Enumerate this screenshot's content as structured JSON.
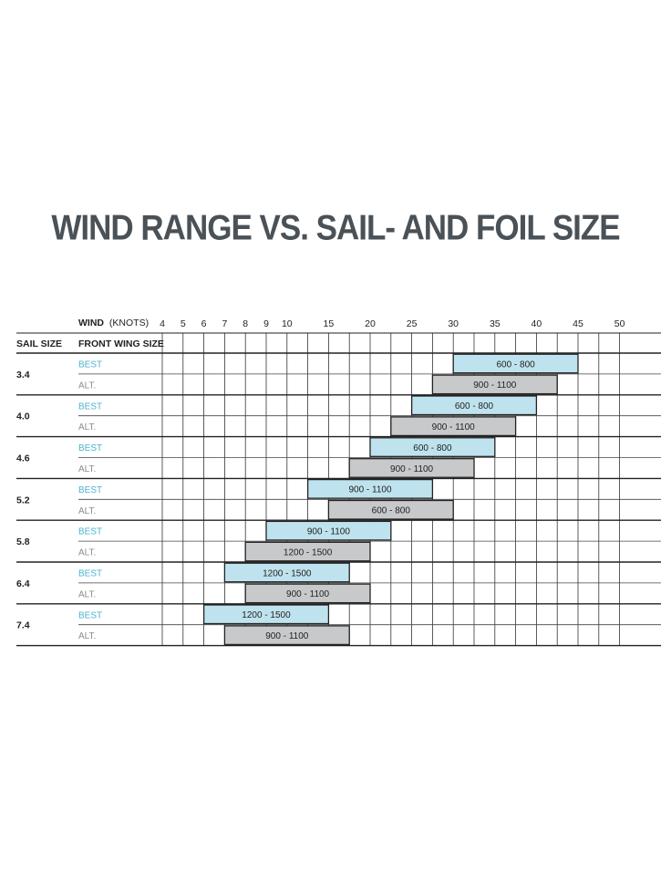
{
  "title": "WIND RANGE VS. SAIL- AND FOIL SIZE",
  "header": {
    "wind_label": "WIND",
    "wind_unit": "(KNOTS)",
    "sail_size_label": "SAIL SIZE",
    "front_wing_label": "FRONT WING SIZE"
  },
  "colors": {
    "best_fill": "#bfe3ee",
    "alt_fill": "#c7c9cb",
    "best_text": "#4bb3cf",
    "alt_text": "#8c8c8c",
    "title": "#4a5157"
  },
  "chart_data": {
    "type": "range-bar",
    "title": "WIND RANGE VS. SAIL- AND FOIL SIZE",
    "x_axis_label": "WIND (KNOTS)",
    "x_ticks": [
      4,
      5,
      6,
      7,
      8,
      9,
      10,
      15,
      20,
      25,
      30,
      35,
      40,
      45,
      50
    ],
    "x_edges": [
      4,
      5,
      6,
      7,
      8,
      9,
      10,
      12.5,
      15,
      17.5,
      20,
      22.5,
      25,
      27.5,
      30,
      32.5,
      35,
      37.5,
      40,
      42.5,
      45,
      47.5,
      50
    ],
    "rows": [
      {
        "sail": "3.4",
        "best": {
          "label": "BEST",
          "range": [
            30,
            45
          ],
          "value": "600 - 800"
        },
        "alt": {
          "label": "ALT.",
          "range": [
            27.5,
            42.5
          ],
          "value": "900 - 1100"
        }
      },
      {
        "sail": "4.0",
        "best": {
          "label": "BEST",
          "range": [
            25,
            40
          ],
          "value": "600 - 800"
        },
        "alt": {
          "label": "ALT.",
          "range": [
            22.5,
            37.5
          ],
          "value": "900 - 1100"
        }
      },
      {
        "sail": "4.6",
        "best": {
          "label": "BEST",
          "range": [
            20,
            35
          ],
          "value": "600 - 800"
        },
        "alt": {
          "label": "ALT.",
          "range": [
            17.5,
            32.5
          ],
          "value": "900 - 1100"
        }
      },
      {
        "sail": "5.2",
        "best": {
          "label": "BEST",
          "range": [
            12.5,
            27.5
          ],
          "value": "900 - 1100"
        },
        "alt": {
          "label": "ALT.",
          "range": [
            15,
            30
          ],
          "value": "600 - 800"
        }
      },
      {
        "sail": "5.8",
        "best": {
          "label": "BEST",
          "range": [
            9,
            22.5
          ],
          "value": "900 - 1100"
        },
        "alt": {
          "label": "ALT.",
          "range": [
            8,
            20
          ],
          "value": "1200 - 1500"
        }
      },
      {
        "sail": "6.4",
        "best": {
          "label": "BEST",
          "range": [
            7,
            17.5
          ],
          "value": "1200 - 1500"
        },
        "alt": {
          "label": "ALT.",
          "range": [
            8,
            20
          ],
          "value": "900 - 1100"
        }
      },
      {
        "sail": "7.4",
        "best": {
          "label": "BEST",
          "range": [
            6,
            15
          ],
          "value": "1200 - 1500"
        },
        "alt": {
          "label": "ALT.",
          "range": [
            7,
            17.5
          ],
          "value": "900 - 1100"
        }
      }
    ]
  }
}
